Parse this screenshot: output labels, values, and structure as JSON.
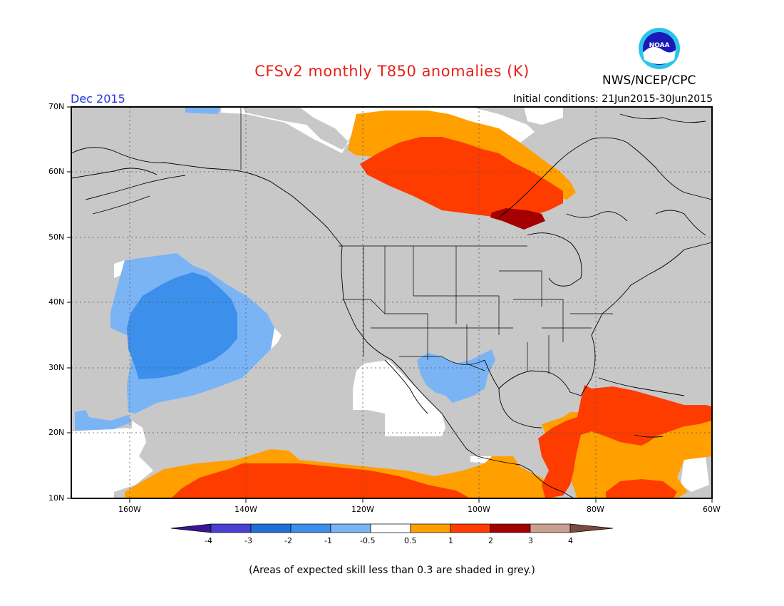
{
  "title": "CFSv2 monthly T850 anomalies (K)",
  "org": "NWS/NCEP/CPC",
  "logo_text": "NOAA",
  "month": "Dec 2015",
  "initial_conditions": "Initial conditions: 21Jun2015-30Jun2015",
  "note": "(Areas of expected skill less than 0.3 are shaded in grey.)",
  "lat_labels": [
    "70N",
    "60N",
    "50N",
    "40N",
    "30N",
    "20N",
    "10N"
  ],
  "lon_labels": [
    "160W",
    "140W",
    "120W",
    "100W",
    "80W",
    "60W"
  ],
  "colorbar": {
    "labels": [
      "-4",
      "-3",
      "-2",
      "-1",
      "-0.5",
      "0.5",
      "1",
      "2",
      "3",
      "4"
    ],
    "colors": [
      "#3a1696",
      "#4a3fd0",
      "#1f6fd8",
      "#3c8fea",
      "#7ab4f5",
      "#ffffff",
      "#ff9f00",
      "#ff3c00",
      "#a40000",
      "#c8a090",
      "#7a4a3a"
    ]
  },
  "colors": {
    "skill_grey": "#c8c8c8",
    "neg_half": "#7ab4f5",
    "neg_one": "#3c8fea",
    "pos_half": "#ff9f00",
    "pos_one": "#ff3c00",
    "pos_two": "#a40000",
    "title_red": "#e8201a",
    "month_blue": "#2233dd"
  }
}
